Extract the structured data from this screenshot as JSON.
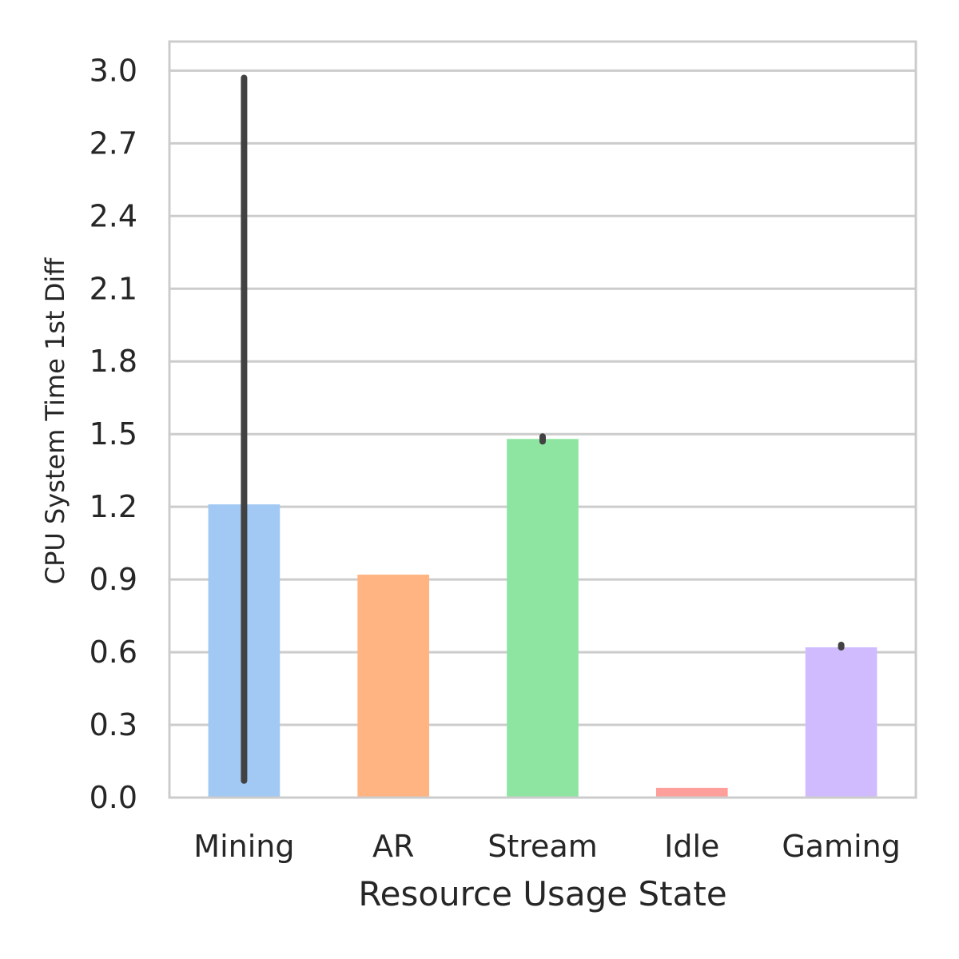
{
  "chart_data": {
    "type": "bar",
    "title": "",
    "xlabel": "Resource Usage State",
    "ylabel": "CPU System Time 1st Diff",
    "categories": [
      "Mining",
      "AR",
      "Stream",
      "Idle",
      "Gaming"
    ],
    "values": [
      1.21,
      0.92,
      1.48,
      0.04,
      0.62
    ],
    "error_bars": [
      {
        "low": 0.07,
        "high": 2.97
      },
      null,
      {
        "low": 1.47,
        "high": 1.49
      },
      null,
      {
        "low": 0.62,
        "high": 0.63
      }
    ],
    "colors": [
      "#a1c9f4",
      "#ffb482",
      "#8de5a1",
      "#ff9f9b",
      "#d0bbff"
    ],
    "errorbar_color": "#424242",
    "ylim": [
      0,
      3.12
    ],
    "yticks": [
      0.0,
      0.3,
      0.6,
      0.9,
      1.2,
      1.5,
      1.8,
      2.1,
      2.4,
      2.7,
      3.0
    ],
    "ytick_labels": [
      "0.0",
      "0.3",
      "0.6",
      "0.9",
      "1.2",
      "1.5",
      "1.8",
      "2.1",
      "2.4",
      "2.7",
      "3.0"
    ],
    "grid": true,
    "grid_color": "#cccccc"
  }
}
